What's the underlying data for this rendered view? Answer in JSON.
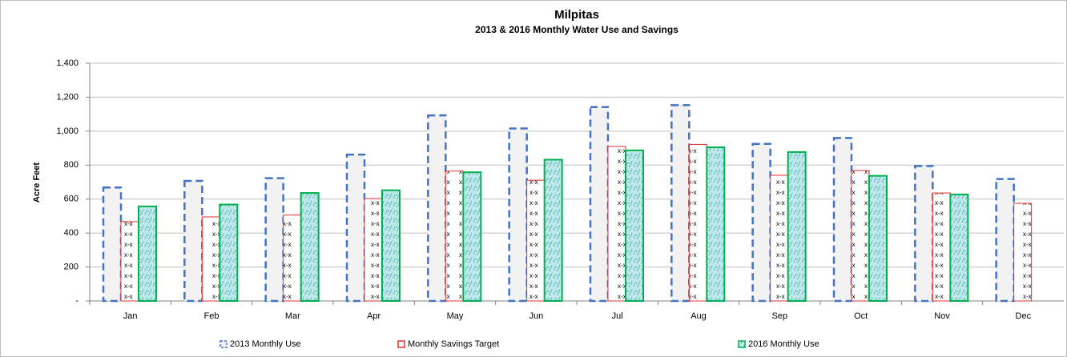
{
  "chart_data": {
    "type": "bar",
    "title": "Milpitas",
    "subtitle": "2013 & 2016 Monthly Water Use and Savings",
    "y_label": "Acre Feet",
    "categories": [
      "Jan",
      "Feb",
      "Mar",
      "Apr",
      "May",
      "Jun",
      "Jul",
      "Aug",
      "Sep",
      "Oct",
      "Nov",
      "Dec"
    ],
    "series": [
      {
        "name": "2013 Monthly Use",
        "color": "#4472c4",
        "values": [
          668,
          707,
          723,
          862,
          1093,
          1016,
          1142,
          1153,
          925,
          960,
          795,
          718
        ]
      },
      {
        "name": "Monthly Savings Target",
        "color": "#e03030",
        "values": [
          467,
          495,
          506,
          603,
          765,
          711,
          910,
          922,
          740,
          768,
          636,
          575
        ]
      },
      {
        "name": "2016 Monthly Use",
        "color": "#00b050",
        "values": [
          557,
          568,
          636,
          652,
          758,
          832,
          887,
          905,
          877,
          737,
          627,
          null
        ]
      }
    ],
    "ylim": [
      0,
      1400
    ],
    "yticks": [
      {
        "value": 0,
        "label": "-"
      },
      200,
      400,
      600,
      800,
      {
        "value": 1000,
        "label": "1,000"
      },
      {
        "value": 1200,
        "label": "1,200"
      },
      {
        "value": 1400,
        "label": "1,400"
      }
    ],
    "grid": true,
    "legend": "bottom"
  }
}
